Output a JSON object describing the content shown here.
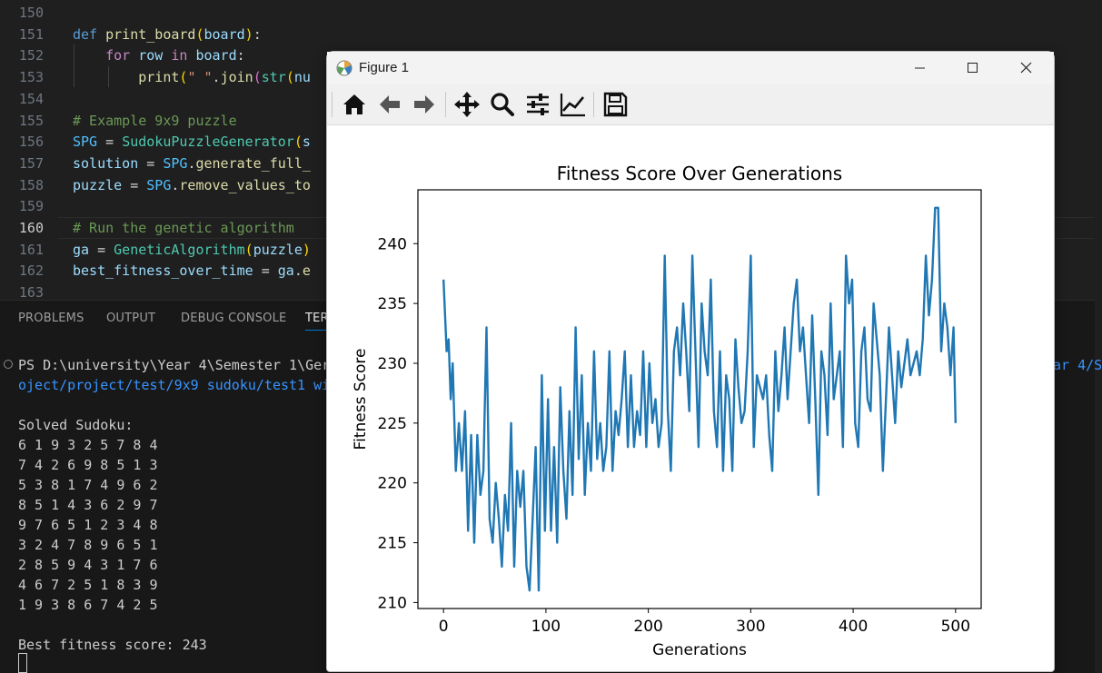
{
  "editor": {
    "lines": [
      {
        "num": "150",
        "tokens": []
      },
      {
        "num": "151",
        "tokens": [
          [
            "kw",
            "def "
          ],
          [
            "fn",
            "print_board"
          ],
          [
            "br1",
            "("
          ],
          [
            "var",
            "board"
          ],
          [
            "br1",
            ")"
          ],
          [
            "p",
            ":"
          ]
        ]
      },
      {
        "num": "152",
        "tokens": [
          [
            "p",
            "    "
          ],
          [
            "kw2",
            "for "
          ],
          [
            "var",
            "row "
          ],
          [
            "kw2",
            "in "
          ],
          [
            "var",
            "board"
          ],
          [
            "p",
            ":"
          ]
        ]
      },
      {
        "num": "153",
        "tokens": [
          [
            "p",
            "        "
          ],
          [
            "fn",
            "print"
          ],
          [
            "br1",
            "("
          ],
          [
            "str",
            "\" \""
          ],
          [
            "p",
            "."
          ],
          [
            "fn",
            "join"
          ],
          [
            "br2",
            "("
          ],
          [
            "cls",
            "str"
          ],
          [
            "br1",
            "("
          ],
          [
            "var",
            "nu"
          ]
        ]
      },
      {
        "num": "154",
        "tokens": []
      },
      {
        "num": "155",
        "tokens": [
          [
            "cm",
            "# Example 9x9 puzzle"
          ]
        ]
      },
      {
        "num": "156",
        "tokens": [
          [
            "con",
            "SPG "
          ],
          [
            "p",
            "= "
          ],
          [
            "cls",
            "SudokuPuzzleGenerator"
          ],
          [
            "br1",
            "("
          ],
          [
            "var",
            "s"
          ]
        ]
      },
      {
        "num": "157",
        "tokens": [
          [
            "var",
            "solution "
          ],
          [
            "p",
            "= "
          ],
          [
            "con",
            "SPG"
          ],
          [
            "p",
            "."
          ],
          [
            "fn",
            "generate_full_"
          ]
        ]
      },
      {
        "num": "158",
        "tokens": [
          [
            "var",
            "puzzle "
          ],
          [
            "p",
            "= "
          ],
          [
            "con",
            "SPG"
          ],
          [
            "p",
            "."
          ],
          [
            "fn",
            "remove_values_to"
          ]
        ]
      },
      {
        "num": "159",
        "tokens": []
      },
      {
        "num": "160",
        "tokens": [
          [
            "cm",
            "# Run the genetic algorithm"
          ]
        ]
      },
      {
        "num": "161",
        "tokens": [
          [
            "var",
            "ga "
          ],
          [
            "p",
            "= "
          ],
          [
            "cls",
            "GeneticAlgorithm"
          ],
          [
            "br1",
            "("
          ],
          [
            "var",
            "puzzle"
          ],
          [
            "br1",
            ")"
          ]
        ]
      },
      {
        "num": "162",
        "tokens": [
          [
            "var",
            "best_fitness_over_time "
          ],
          [
            "p",
            "= "
          ],
          [
            "var",
            "ga"
          ],
          [
            "p",
            "."
          ],
          [
            "fn",
            "e"
          ]
        ]
      },
      {
        "num": "163",
        "tokens": []
      }
    ],
    "active_line": "160"
  },
  "panel": {
    "tabs": [
      "PROBLEMS",
      "OUTPUT",
      "DEBUG CONSOLE",
      "TER"
    ],
    "active_tab": "TER",
    "prompt_line": "PS D:\\university\\Year 4\\Semester 1\\Ger",
    "prompt_tail": "ear 4/S",
    "path_line": "oject/project/test/9x9 sudoku/test1 wi",
    "solved_label": "Solved Sudoku:",
    "grid": [
      "6 1 9 3 2 5 7 8 4",
      "7 4 2 6 9 8 5 1 3",
      "5 3 8 1 7 4 9 6 2",
      "8 5 1 4 3 6 2 9 7",
      "9 7 6 5 1 2 3 4 8",
      "3 2 4 7 8 9 6 5 1",
      "2 8 5 9 4 3 1 7 6",
      "4 6 7 2 5 1 8 3 9",
      "1 9 3 8 6 7 4 2 5"
    ],
    "best_fitness": "Best fitness score: 243"
  },
  "figure": {
    "window_title": "Figure 1",
    "toolbar": [
      "home-icon",
      "back-icon",
      "forward-icon",
      "pan-icon",
      "zoom-icon",
      "configure-subplots-icon",
      "edit-axis-icon",
      "save-icon"
    ],
    "colors": {
      "line": "#1f77b4",
      "titlebar": "#f3f3f3",
      "toolbar": "#f0f0f0"
    }
  },
  "chart_data": {
    "type": "line",
    "title": "Fitness Score Over Generations",
    "xlabel": "Generations",
    "ylabel": "Fitness Score",
    "xlim": [
      -25,
      525
    ],
    "ylim": [
      209.5,
      244.5
    ],
    "xticks": [
      0,
      100,
      200,
      300,
      400,
      500
    ],
    "yticks": [
      210,
      215,
      220,
      225,
      230,
      235,
      240
    ],
    "grid": false,
    "series": [
      {
        "color": "#1f77b4",
        "x": [
          0,
          3,
          5,
          7,
          9,
          12,
          15,
          18,
          21,
          24,
          27,
          30,
          33,
          36,
          39,
          42,
          45,
          48,
          51,
          54,
          57,
          60,
          63,
          66,
          69,
          72,
          75,
          78,
          81,
          84,
          87,
          90,
          93,
          96,
          99,
          102,
          105,
          108,
          111,
          114,
          117,
          120,
          123,
          126,
          129,
          132,
          135,
          138,
          141,
          144,
          147,
          150,
          153,
          156,
          159,
          162,
          165,
          168,
          171,
          174,
          177,
          180,
          183,
          186,
          189,
          192,
          195,
          198,
          201,
          204,
          207,
          210,
          213,
          216,
          219,
          222,
          225,
          228,
          231,
          234,
          237,
          240,
          243,
          246,
          249,
          252,
          255,
          258,
          261,
          264,
          267,
          270,
          273,
          276,
          279,
          282,
          285,
          288,
          291,
          294,
          297,
          300,
          303,
          306,
          309,
          312,
          315,
          318,
          321,
          324,
          327,
          330,
          333,
          336,
          339,
          342,
          345,
          348,
          351,
          354,
          357,
          360,
          363,
          366,
          369,
          372,
          375,
          378,
          381,
          384,
          387,
          390,
          393,
          396,
          399,
          402,
          405,
          408,
          411,
          414,
          417,
          420,
          423,
          426,
          429,
          432,
          435,
          438,
          441,
          444,
          447,
          450,
          453,
          456,
          459,
          462,
          465,
          468,
          471,
          474,
          477,
          480,
          483,
          486,
          489,
          492,
          495,
          498,
          500
        ],
        "y": [
          237,
          231,
          232,
          227,
          230,
          221,
          225,
          221,
          226,
          216,
          224,
          215,
          224,
          219,
          221,
          233,
          217,
          215,
          220,
          217,
          213,
          219,
          216,
          225,
          213,
          221,
          218,
          221,
          213,
          211,
          217,
          223,
          211,
          229,
          216,
          227,
          216,
          223,
          215,
          228,
          221,
          217,
          226,
          219,
          233,
          222,
          229,
          219,
          225,
          221,
          231,
          222,
          225,
          221,
          223,
          231,
          221,
          226,
          224,
          227,
          231,
          223,
          229,
          223,
          226,
          224,
          231,
          223,
          230,
          225,
          227,
          223,
          225,
          239,
          226,
          221,
          231,
          233,
          229,
          235,
          231,
          226,
          239,
          231,
          223,
          235,
          231,
          229,
          237,
          226,
          223,
          231,
          221,
          229,
          227,
          221,
          232,
          228,
          225,
          226,
          231,
          239,
          223,
          229,
          228,
          227,
          229,
          224,
          221,
          231,
          226,
          229,
          233,
          227,
          231,
          235,
          237,
          231,
          233,
          229,
          225,
          234,
          227,
          219,
          231,
          229,
          224,
          235,
          227,
          229,
          231,
          223,
          239,
          235,
          237,
          225,
          223,
          231,
          233,
          227,
          226,
          235,
          232,
          229,
          221,
          227,
          233,
          229,
          225,
          231,
          228,
          230,
          232,
          229,
          230,
          231,
          229,
          232,
          239,
          234,
          237,
          243,
          243,
          231,
          235,
          233,
          229,
          233,
          225
        ]
      }
    ]
  }
}
